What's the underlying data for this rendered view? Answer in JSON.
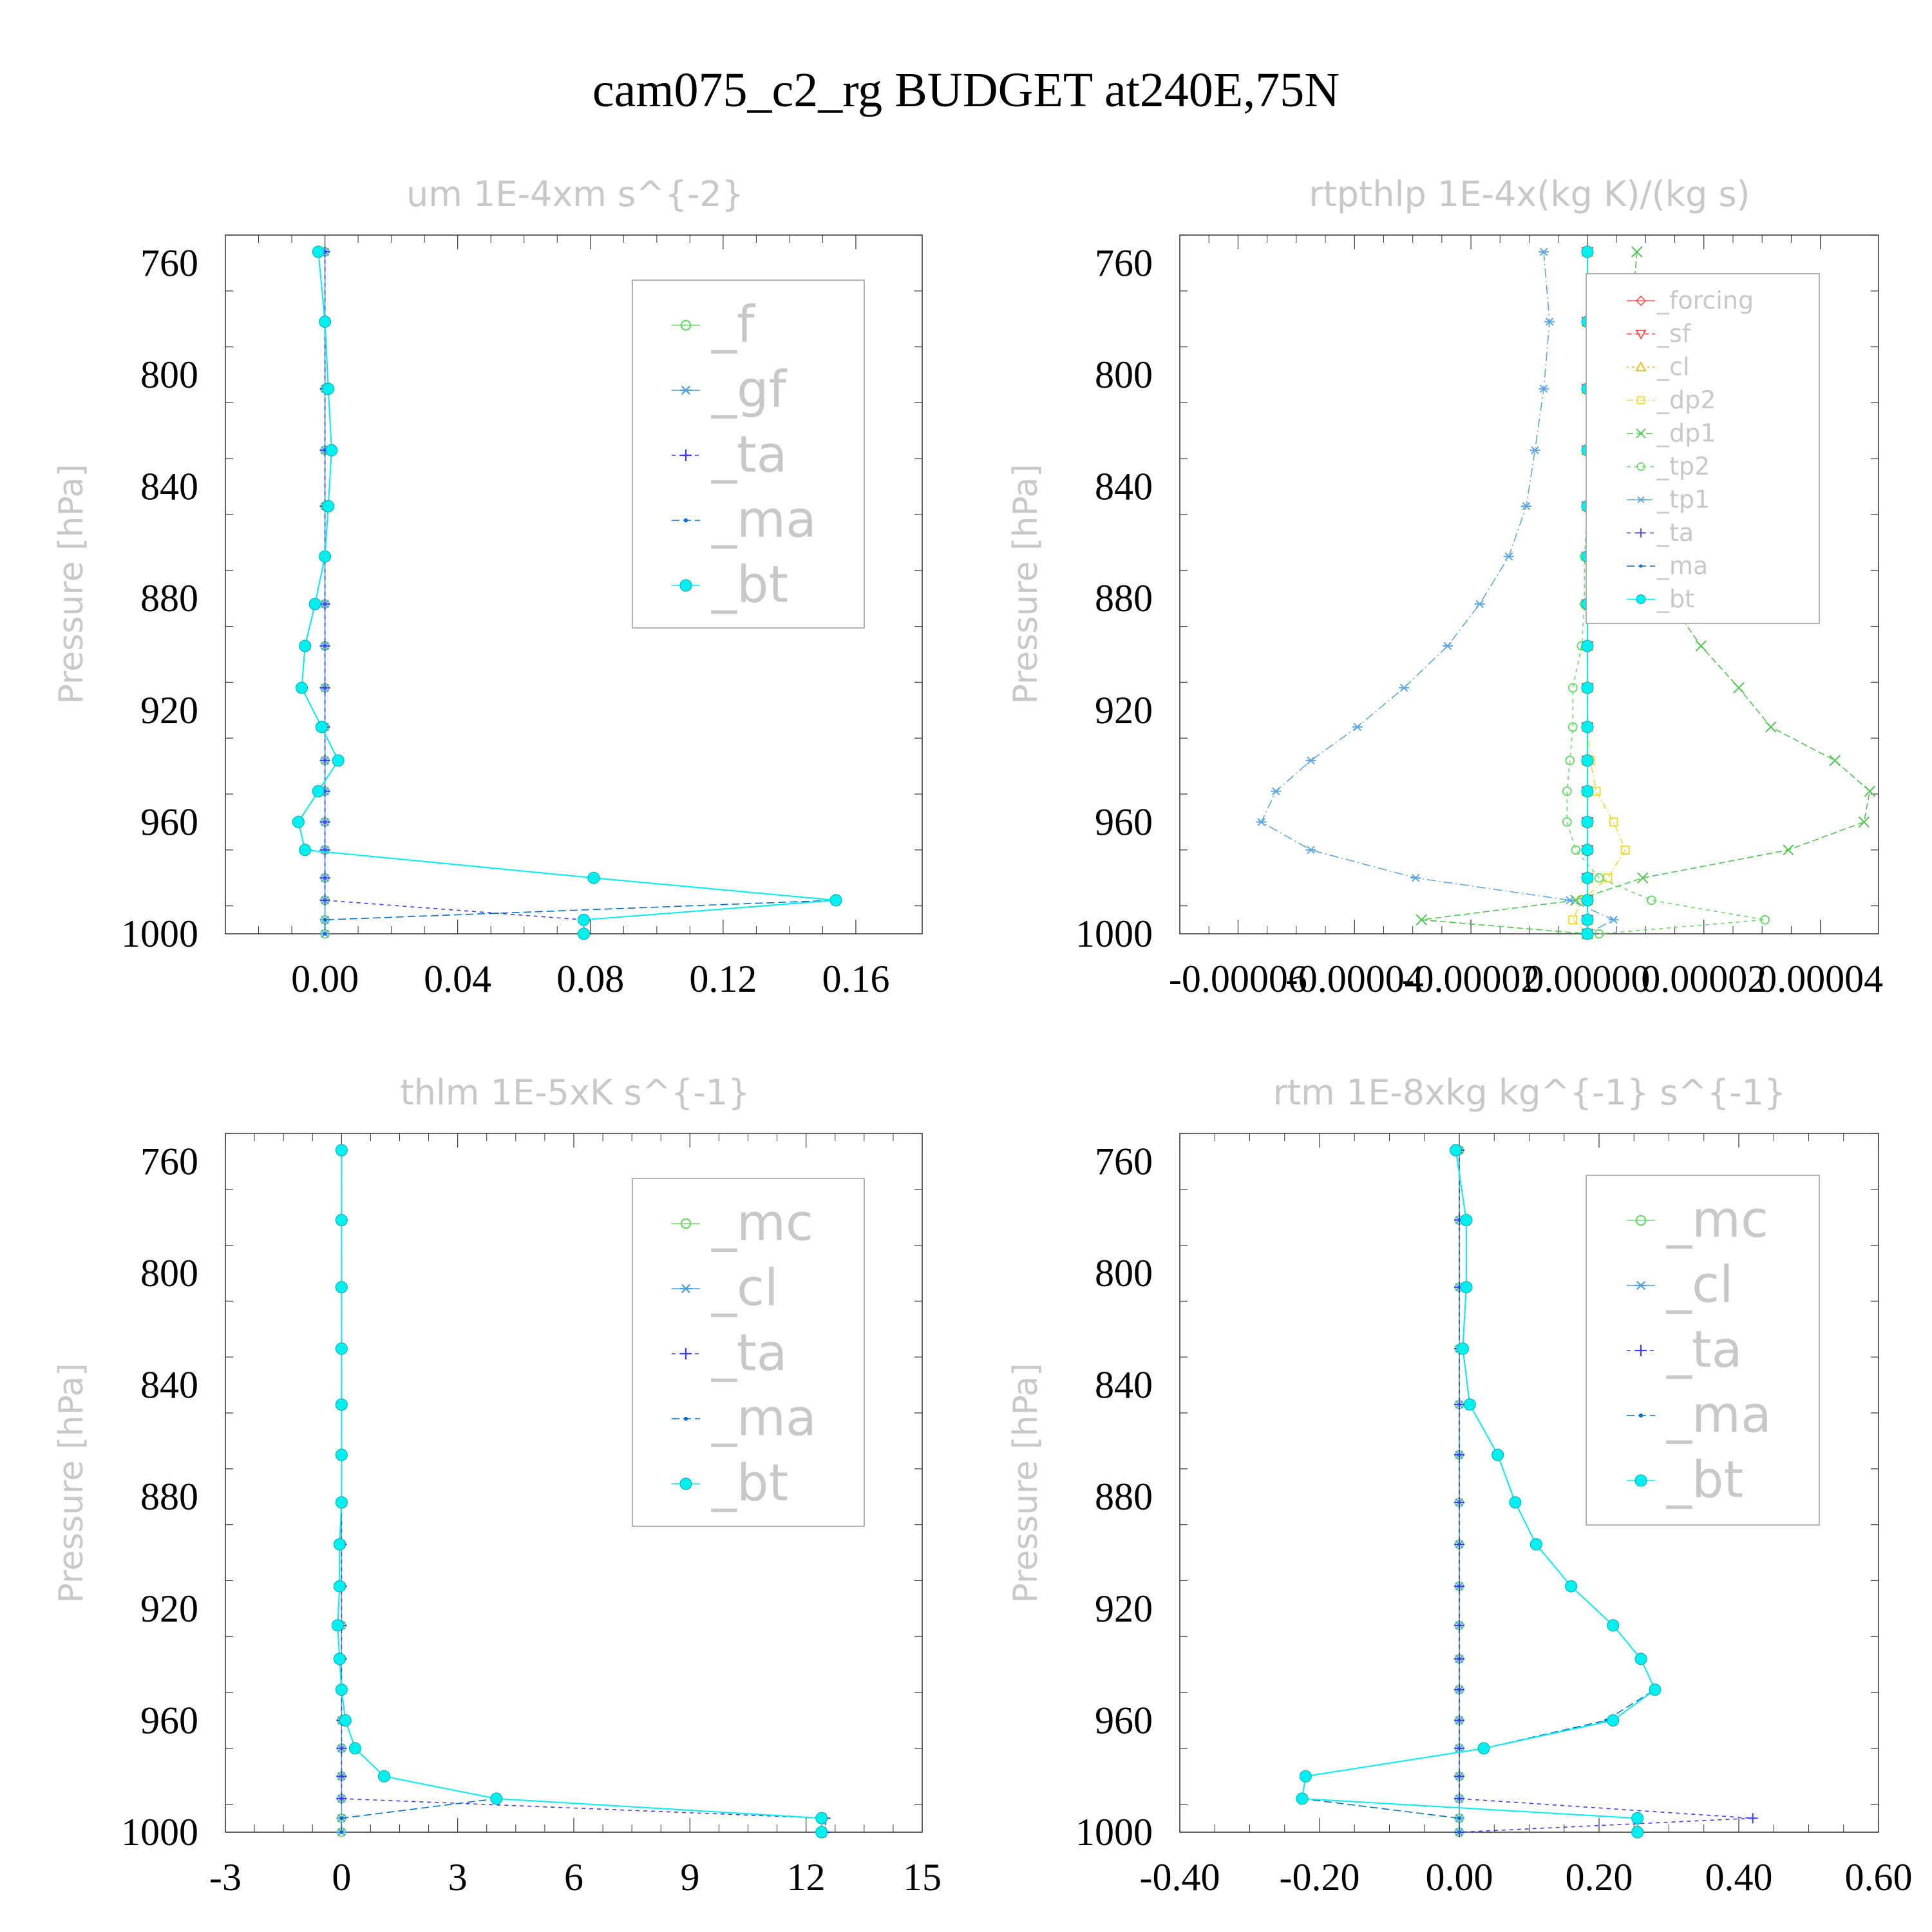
{
  "title": "cam075_c2_rg  BUDGET at240E,75N",
  "colors": {
    "forcing": "#ff5a5a",
    "sf": "#ff3c3c",
    "cl_warm": "#f5b800",
    "dp2": "#f0dc28",
    "dp1": "#4cc84c",
    "tp2": "#66dd66",
    "tp1": "#5aa6e6",
    "f": "#66dd66",
    "gf": "#4f9fe0",
    "mc": "#66dd66",
    "cl": "#4f9fe0",
    "ta": "#3a3aff",
    "ma": "#0070d0",
    "bt": "#00f0f0"
  },
  "chart_data": [
    {
      "type": "line",
      "title": "um  1E-4xm s^{-2}",
      "ylabel": "Pressure [hPa]",
      "y_reversed": true,
      "ylim": [
        750,
        1000
      ],
      "xlim": [
        -0.03,
        0.18
      ],
      "xticks": [
        "0.00",
        "0.04",
        "0.08",
        "0.12",
        "0.16"
      ],
      "xtick_values": [
        0,
        0.04,
        0.08,
        0.12,
        0.16
      ],
      "yticks": [
        "760",
        "800",
        "840",
        "880",
        "920",
        "960",
        "1000"
      ],
      "ytick_values": [
        760,
        800,
        840,
        880,
        920,
        960,
        1000
      ],
      "levels": [
        756,
        781,
        805,
        827,
        847,
        865,
        882,
        897,
        912,
        926,
        938,
        949,
        960,
        970,
        980,
        988,
        995,
        1000
      ],
      "series": [
        {
          "name": "_f",
          "color_key": "f",
          "marker": "circle-open",
          "dash": "",
          "values": [
            0,
            0,
            0,
            0,
            0,
            0,
            0,
            0,
            0,
            0,
            0,
            0,
            0,
            0,
            0,
            0,
            0,
            0
          ]
        },
        {
          "name": "_gf",
          "color_key": "gf",
          "marker": "asterisk",
          "dash": "",
          "values": [
            0,
            0,
            0,
            0,
            0,
            0,
            0,
            0,
            0,
            0,
            0,
            0,
            0,
            0,
            0,
            0,
            0,
            0
          ]
        },
        {
          "name": "_ta",
          "color_key": "ta",
          "marker": "plus",
          "dash": "6,6",
          "values": [
            0,
            0,
            0,
            0,
            0,
            0,
            0,
            0,
            0,
            0,
            0,
            0,
            0,
            0,
            0,
            0,
            0.078,
            0.078
          ]
        },
        {
          "name": "_ma",
          "color_key": "ma",
          "marker": "dot",
          "dash": "12,6",
          "values": [
            -0.002,
            0,
            0.001,
            0.002,
            0.001,
            0,
            -0.003,
            -0.006,
            -0.007,
            -0.001,
            0.004,
            -0.002,
            -0.008,
            -0.006,
            0.081,
            0.154,
            0,
            0
          ]
        },
        {
          "name": "_bt",
          "color_key": "bt",
          "marker": "filled-circle",
          "dash": "",
          "values": [
            -0.002,
            0,
            0.001,
            0.002,
            0.001,
            0,
            -0.003,
            -0.006,
            -0.007,
            -0.001,
            0.004,
            -0.002,
            -0.008,
            -0.006,
            0.081,
            0.154,
            0.078,
            0.078
          ]
        }
      ]
    },
    {
      "type": "line",
      "title": "rtpthlp  1E-4x(kg K)/(kg s)",
      "ylabel": "Pressure [hPa]",
      "y_reversed": true,
      "ylim": [
        750,
        1000
      ],
      "xlim": [
        -7e-05,
        5e-05
      ],
      "xticks": [
        "-0.00006",
        "-0.00004",
        "-0.00002",
        "0.00000",
        "0.00002",
        "0.00004"
      ],
      "xtick_values": [
        -6e-05,
        -4e-05,
        -2e-05,
        0,
        2e-05,
        4e-05
      ],
      "yticks": [
        "760",
        "800",
        "840",
        "880",
        "920",
        "960",
        "1000"
      ],
      "ytick_values": [
        760,
        800,
        840,
        880,
        920,
        960,
        1000
      ],
      "levels": [
        756,
        781,
        805,
        827,
        847,
        865,
        882,
        897,
        912,
        926,
        938,
        949,
        960,
        970,
        980,
        988,
        995,
        1000
      ],
      "series": [
        {
          "name": "_forcing",
          "color_key": "forcing",
          "marker": "diamond",
          "dash": "",
          "values": [
            0,
            0,
            0,
            0,
            0,
            0,
            0,
            0,
            0,
            0,
            0,
            0,
            0,
            0,
            0,
            0,
            0,
            0
          ]
        },
        {
          "name": "_sf",
          "color_key": "sf",
          "marker": "triangle-down",
          "dash": "8,5",
          "values": [
            0,
            0,
            0,
            0,
            0,
            0,
            0,
            0,
            0,
            0,
            0,
            0,
            0,
            0,
            0,
            0,
            0,
            0
          ]
        },
        {
          "name": "_cl",
          "color_key": "cl_warm",
          "marker": "triangle-up",
          "dash": "3,5",
          "values": [
            0,
            0,
            0,
            0,
            0,
            0,
            0,
            0,
            0,
            0,
            0,
            0,
            0,
            0,
            0,
            0,
            0,
            0
          ]
        },
        {
          "name": "_dp2",
          "color_key": "dp2",
          "marker": "square",
          "dash": "10,4,2,4",
          "values": [
            0,
            0,
            0,
            0,
            0,
            0,
            0,
            0,
            0,
            0,
            5e-07,
            1.5e-06,
            4.5e-06,
            6.5e-06,
            3.5e-06,
            -1e-06,
            -2.5e-06,
            0
          ]
        },
        {
          "name": "_dp1",
          "color_key": "dp1",
          "marker": "x",
          "dash": "10,5",
          "values": [
            8.5e-06,
            7.5e-06,
            8.5e-06,
            8.5e-06,
            9e-06,
            1.25e-05,
            1.45e-05,
            1.95e-05,
            2.6e-05,
            3.15e-05,
            4.25e-05,
            4.85e-05,
            4.75e-05,
            3.45e-05,
            9.5e-06,
            -2e-06,
            -2.85e-05,
            0
          ]
        },
        {
          "name": "_tp2",
          "color_key": "tp2",
          "marker": "circle-open",
          "dash": "6,6",
          "values": [
            0,
            0,
            0,
            0,
            0,
            -5e-07,
            -5e-07,
            -1e-06,
            -2.5e-06,
            -2.5e-06,
            -3e-06,
            -3.5e-06,
            -3.5e-06,
            -2e-06,
            2e-06,
            1.1e-05,
            3.05e-05,
            2e-06
          ]
        },
        {
          "name": "_tp1",
          "color_key": "tp1",
          "marker": "asterisk",
          "dash": "14,5,2,5",
          "values": [
            -7.5e-06,
            -6.5e-06,
            -7.5e-06,
            -9e-06,
            -1.05e-05,
            -1.35e-05,
            -1.85e-05,
            -2.4e-05,
            -3.15e-05,
            -3.95e-05,
            -4.75e-05,
            -5.35e-05,
            -5.6e-05,
            -4.75e-05,
            -2.95e-05,
            -3e-06,
            4.5e-06,
            0
          ]
        },
        {
          "name": "_ta",
          "color_key": "ta",
          "marker": "plus",
          "dash": "6,6",
          "values": [
            0,
            0,
            0,
            0,
            0,
            0,
            0,
            0,
            0,
            0,
            0,
            0,
            0,
            0,
            0,
            0,
            0,
            0
          ]
        },
        {
          "name": "_ma",
          "color_key": "ma",
          "marker": "dot",
          "dash": "12,6",
          "values": [
            0,
            0,
            0,
            0,
            0,
            0,
            0,
            0,
            0,
            0,
            0,
            0,
            0,
            0,
            0,
            0,
            0,
            0
          ]
        },
        {
          "name": "_bt",
          "color_key": "bt",
          "marker": "filled-circle",
          "dash": "",
          "values": [
            0,
            0,
            0,
            0,
            0,
            0,
            0,
            0,
            0,
            0,
            0,
            0,
            0,
            0,
            0,
            0,
            0,
            0
          ]
        }
      ]
    },
    {
      "type": "line",
      "title": "thlm  1E-5xK s^{-1}",
      "ylabel": "Pressure [hPa]",
      "y_reversed": true,
      "ylim": [
        750,
        1000
      ],
      "xlim": [
        -3,
        15
      ],
      "xticks": [
        "-3",
        "0",
        "3",
        "6",
        "9",
        "12",
        "15"
      ],
      "xtick_values": [
        -3,
        0,
        3,
        6,
        9,
        12,
        15
      ],
      "yticks": [
        "760",
        "800",
        "840",
        "880",
        "920",
        "960",
        "1000"
      ],
      "ytick_values": [
        760,
        800,
        840,
        880,
        920,
        960,
        1000
      ],
      "levels": [
        756,
        781,
        805,
        827,
        847,
        865,
        882,
        897,
        912,
        926,
        938,
        949,
        960,
        970,
        980,
        988,
        995,
        1000
      ],
      "series": [
        {
          "name": "_mc",
          "color_key": "mc",
          "marker": "circle-open",
          "dash": "",
          "values": [
            0,
            0,
            0,
            0,
            0,
            0,
            0,
            0,
            0,
            0,
            0,
            0,
            0,
            0,
            0,
            0,
            0,
            0
          ]
        },
        {
          "name": "_cl",
          "color_key": "cl",
          "marker": "asterisk",
          "dash": "",
          "values": [
            0,
            0,
            0,
            0,
            0,
            0,
            0,
            0,
            0,
            0,
            0,
            0,
            0,
            0,
            0,
            0,
            0,
            0
          ]
        },
        {
          "name": "_ta",
          "color_key": "ta",
          "marker": "plus",
          "dash": "6,6",
          "values": [
            0,
            0,
            0,
            0,
            0,
            0,
            0,
            0,
            0,
            0,
            0,
            0,
            0,
            0,
            0,
            0,
            12.5,
            12.5
          ]
        },
        {
          "name": "_ma",
          "color_key": "ma",
          "marker": "dot",
          "dash": "12,6",
          "values": [
            0,
            0,
            0,
            0,
            0,
            0,
            0,
            -0.05,
            -0.05,
            -0.1,
            -0.05,
            0,
            0.1,
            0.35,
            1.1,
            4,
            0,
            0
          ]
        },
        {
          "name": "_bt",
          "color_key": "bt",
          "marker": "filled-circle",
          "dash": "",
          "values": [
            0,
            0,
            0,
            0,
            0,
            0,
            0,
            -0.05,
            -0.05,
            -0.1,
            -0.05,
            0,
            0.1,
            0.35,
            1.1,
            4,
            12.4,
            12.4
          ]
        }
      ]
    },
    {
      "type": "line",
      "title": "rtm  1E-8xkg kg^{-1} s^{-1}",
      "ylabel": "Pressure [hPa]",
      "y_reversed": true,
      "ylim": [
        750,
        1000
      ],
      "xlim": [
        -0.4,
        0.6
      ],
      "xticks": [
        "-0.40",
        "-0.20",
        "0.00",
        "0.20",
        "0.40",
        "0.60"
      ],
      "xtick_values": [
        -0.4,
        -0.2,
        0,
        0.2,
        0.4,
        0.6
      ],
      "yticks": [
        "760",
        "800",
        "840",
        "880",
        "920",
        "960",
        "1000"
      ],
      "ytick_values": [
        760,
        800,
        840,
        880,
        920,
        960,
        1000
      ],
      "levels": [
        756,
        781,
        805,
        827,
        847,
        865,
        882,
        897,
        912,
        926,
        938,
        949,
        960,
        970,
        980,
        988,
        995,
        1000
      ],
      "series": [
        {
          "name": "_mc",
          "color_key": "mc",
          "marker": "circle-open",
          "dash": "",
          "values": [
            0,
            0,
            0,
            0,
            0,
            0,
            0,
            0,
            0,
            0,
            0,
            0,
            0,
            0,
            0,
            0,
            0,
            0
          ]
        },
        {
          "name": "_cl",
          "color_key": "cl",
          "marker": "asterisk",
          "dash": "",
          "values": [
            0,
            0,
            0,
            0,
            0,
            0,
            0,
            0,
            0,
            0,
            0,
            0,
            0,
            0,
            0,
            0,
            0,
            0
          ]
        },
        {
          "name": "_ta",
          "color_key": "ta",
          "marker": "plus",
          "dash": "6,6",
          "values": [
            0,
            0,
            0,
            0,
            0,
            0,
            0,
            0,
            0,
            0,
            0,
            0,
            0,
            0,
            0,
            0,
            0.42,
            0
          ]
        },
        {
          "name": "_ma",
          "color_key": "ma",
          "marker": "dot",
          "dash": "12,6",
          "values": [
            -0.005,
            0.01,
            0.01,
            0.005,
            0.015,
            0.055,
            0.08,
            0.11,
            0.16,
            0.22,
            0.26,
            0.28,
            0.21,
            0.035,
            -0.22,
            -0.225,
            0,
            0
          ]
        },
        {
          "name": "_bt",
          "color_key": "bt",
          "marker": "filled-circle",
          "dash": "",
          "values": [
            -0.005,
            0.01,
            0.01,
            0.005,
            0.015,
            0.055,
            0.08,
            0.11,
            0.16,
            0.22,
            0.26,
            0.28,
            0.22,
            0.035,
            -0.22,
            -0.225,
            0.255,
            0.255
          ]
        }
      ]
    }
  ]
}
